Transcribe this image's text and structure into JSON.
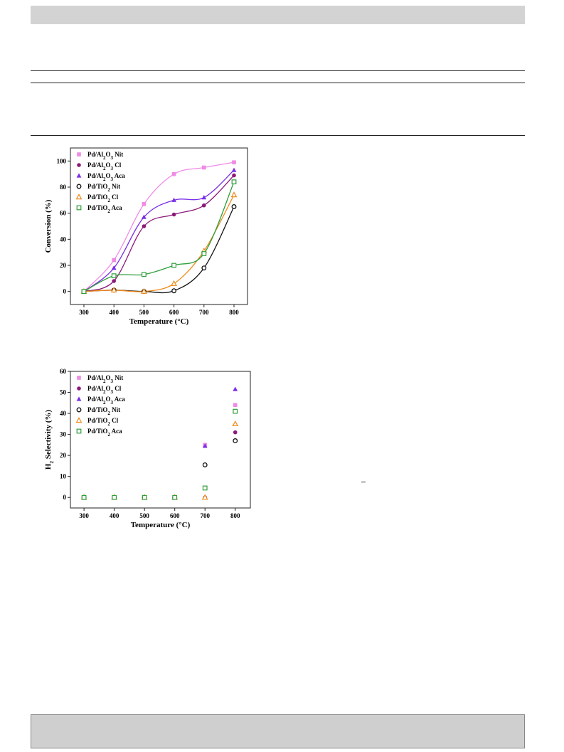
{
  "chart_data": [
    {
      "type": "scatter",
      "title": "",
      "xlabel": "Temperature (°C)",
      "ylabel": "Conversion (%)",
      "xlim": [
        255,
        845
      ],
      "ylim": [
        -10,
        110
      ],
      "xticks": [
        300,
        400,
        500,
        600,
        700,
        800
      ],
      "yticks": [
        0,
        20,
        40,
        60,
        80,
        100
      ],
      "grid": false,
      "legend_position": "top-left",
      "fitted_curves": true,
      "series": [
        {
          "name": "Pd/Al2O3 Nit",
          "name_html": "Pd/Al<tspan baseline-shift='sub' font-size='7'>2</tspan>O<tspan baseline-shift='sub' font-size='7'>3</tspan> Nit",
          "marker": "square-filled",
          "color": "#f08ae6",
          "x": [
            300,
            400,
            500,
            600,
            700,
            800
          ],
          "y": [
            0,
            24,
            67,
            90,
            95,
            99
          ]
        },
        {
          "name": "Pd/Al2O3 Cl",
          "name_html": "Pd/Al<tspan baseline-shift='sub' font-size='7'>2</tspan>O<tspan baseline-shift='sub' font-size='7'>3</tspan> Cl",
          "marker": "circle-filled",
          "color": "#8b1a7a",
          "x": [
            300,
            400,
            500,
            600,
            700,
            800
          ],
          "y": [
            0,
            8,
            50,
            59,
            66,
            89
          ]
        },
        {
          "name": "Pd/Al2O3 Aca",
          "name_html": "Pd/Al<tspan baseline-shift='sub' font-size='7'>2</tspan>O<tspan baseline-shift='sub' font-size='7'>3</tspan> Aca",
          "marker": "triangle-filled",
          "color": "#7a2ee6",
          "x": [
            300,
            400,
            500,
            600,
            700,
            800
          ],
          "y": [
            0,
            18,
            57,
            70,
            72,
            93
          ]
        },
        {
          "name": "Pd/TiO2 Nit",
          "name_html": "Pd/TiO<tspan baseline-shift='sub' font-size='7'>2</tspan> Nit",
          "marker": "circle-open",
          "color": "#111111",
          "x": [
            300,
            400,
            500,
            600,
            700,
            800
          ],
          "y": [
            0,
            1,
            0,
            0.5,
            18,
            65
          ]
        },
        {
          "name": "Pd/TiO2 Cl",
          "name_html": "Pd/TiO<tspan baseline-shift='sub' font-size='7'>2</tspan> Cl",
          "marker": "triangle-open",
          "color": "#f08a1c",
          "x": [
            300,
            400,
            500,
            600,
            700,
            800
          ],
          "y": [
            0,
            1,
            0,
            6,
            31,
            74
          ]
        },
        {
          "name": "Pd/TiO2 Aca",
          "name_html": "Pd/TiO<tspan baseline-shift='sub' font-size='7'>2</tspan> Aca",
          "marker": "square-open",
          "color": "#2e9e3a",
          "x": [
            300,
            400,
            500,
            600,
            700,
            800
          ],
          "y": [
            0,
            12,
            13,
            20,
            29,
            84
          ]
        }
      ]
    },
    {
      "type": "scatter",
      "title": "",
      "xlabel": "Temperature (°C)",
      "ylabel": "H2 Selectivity (%)",
      "ylabel_html": "H<tspan baseline-shift='sub' font-size='7'>2</tspan> Selectivity (%)",
      "xlim": [
        255,
        850
      ],
      "ylim": [
        -5,
        60
      ],
      "xticks": [
        300,
        400,
        500,
        600,
        700,
        800
      ],
      "yticks": [
        0,
        10,
        20,
        30,
        40,
        50,
        60
      ],
      "grid": false,
      "legend_position": "top-left",
      "fitted_curves": false,
      "series": [
        {
          "name": "Pd/Al2O3 Nit",
          "name_html": "Pd/Al<tspan baseline-shift='sub' font-size='7'>2</tspan>O<tspan baseline-shift='sub' font-size='7'>3</tspan> Nit",
          "marker": "square-filled",
          "color": "#f08ae6",
          "x": [
            300,
            400,
            500,
            600,
            700,
            800
          ],
          "y": [
            0,
            0,
            0,
            0,
            25,
            44
          ]
        },
        {
          "name": "Pd/Al2O3 Cl",
          "name_html": "Pd/Al<tspan baseline-shift='sub' font-size='7'>2</tspan>O<tspan baseline-shift='sub' font-size='7'>3</tspan> Cl",
          "marker": "circle-filled",
          "color": "#8b1a7a",
          "x": [
            300,
            400,
            500,
            600,
            700,
            800
          ],
          "y": [
            0,
            0,
            0,
            0,
            0,
            31
          ]
        },
        {
          "name": "Pd/Al2O3 Aca",
          "name_html": "Pd/Al<tspan baseline-shift='sub' font-size='7'>2</tspan>O<tspan baseline-shift='sub' font-size='7'>3</tspan> Aca",
          "marker": "triangle-filled",
          "color": "#7a2ee6",
          "x": [
            300,
            400,
            500,
            600,
            700,
            800
          ],
          "y": [
            0,
            0,
            0,
            0,
            24.5,
            51.5
          ]
        },
        {
          "name": "Pd/TiO2 Nit",
          "name_html": "Pd/TiO<tspan baseline-shift='sub' font-size='7'>2</tspan> Nit",
          "marker": "circle-open",
          "color": "#111111",
          "x": [
            300,
            400,
            500,
            600,
            700,
            800
          ],
          "y": [
            0,
            0,
            0,
            0,
            15.5,
            27
          ]
        },
        {
          "name": "Pd/TiO2 Cl",
          "name_html": "Pd/TiO<tspan baseline-shift='sub' font-size='7'>2</tspan> Cl",
          "marker": "triangle-open",
          "color": "#f08a1c",
          "x": [
            300,
            400,
            500,
            600,
            700,
            800
          ],
          "y": [
            0,
            0,
            0,
            0,
            0,
            35
          ]
        },
        {
          "name": "Pd/TiO2 Aca",
          "name_html": "Pd/TiO<tspan baseline-shift='sub' font-size='7'>2</tspan> Aca",
          "marker": "square-open",
          "color": "#2e9e3a",
          "x": [
            300,
            400,
            500,
            600,
            700,
            800
          ],
          "y": [
            0,
            0,
            0,
            0,
            4.5,
            41
          ]
        }
      ]
    }
  ]
}
